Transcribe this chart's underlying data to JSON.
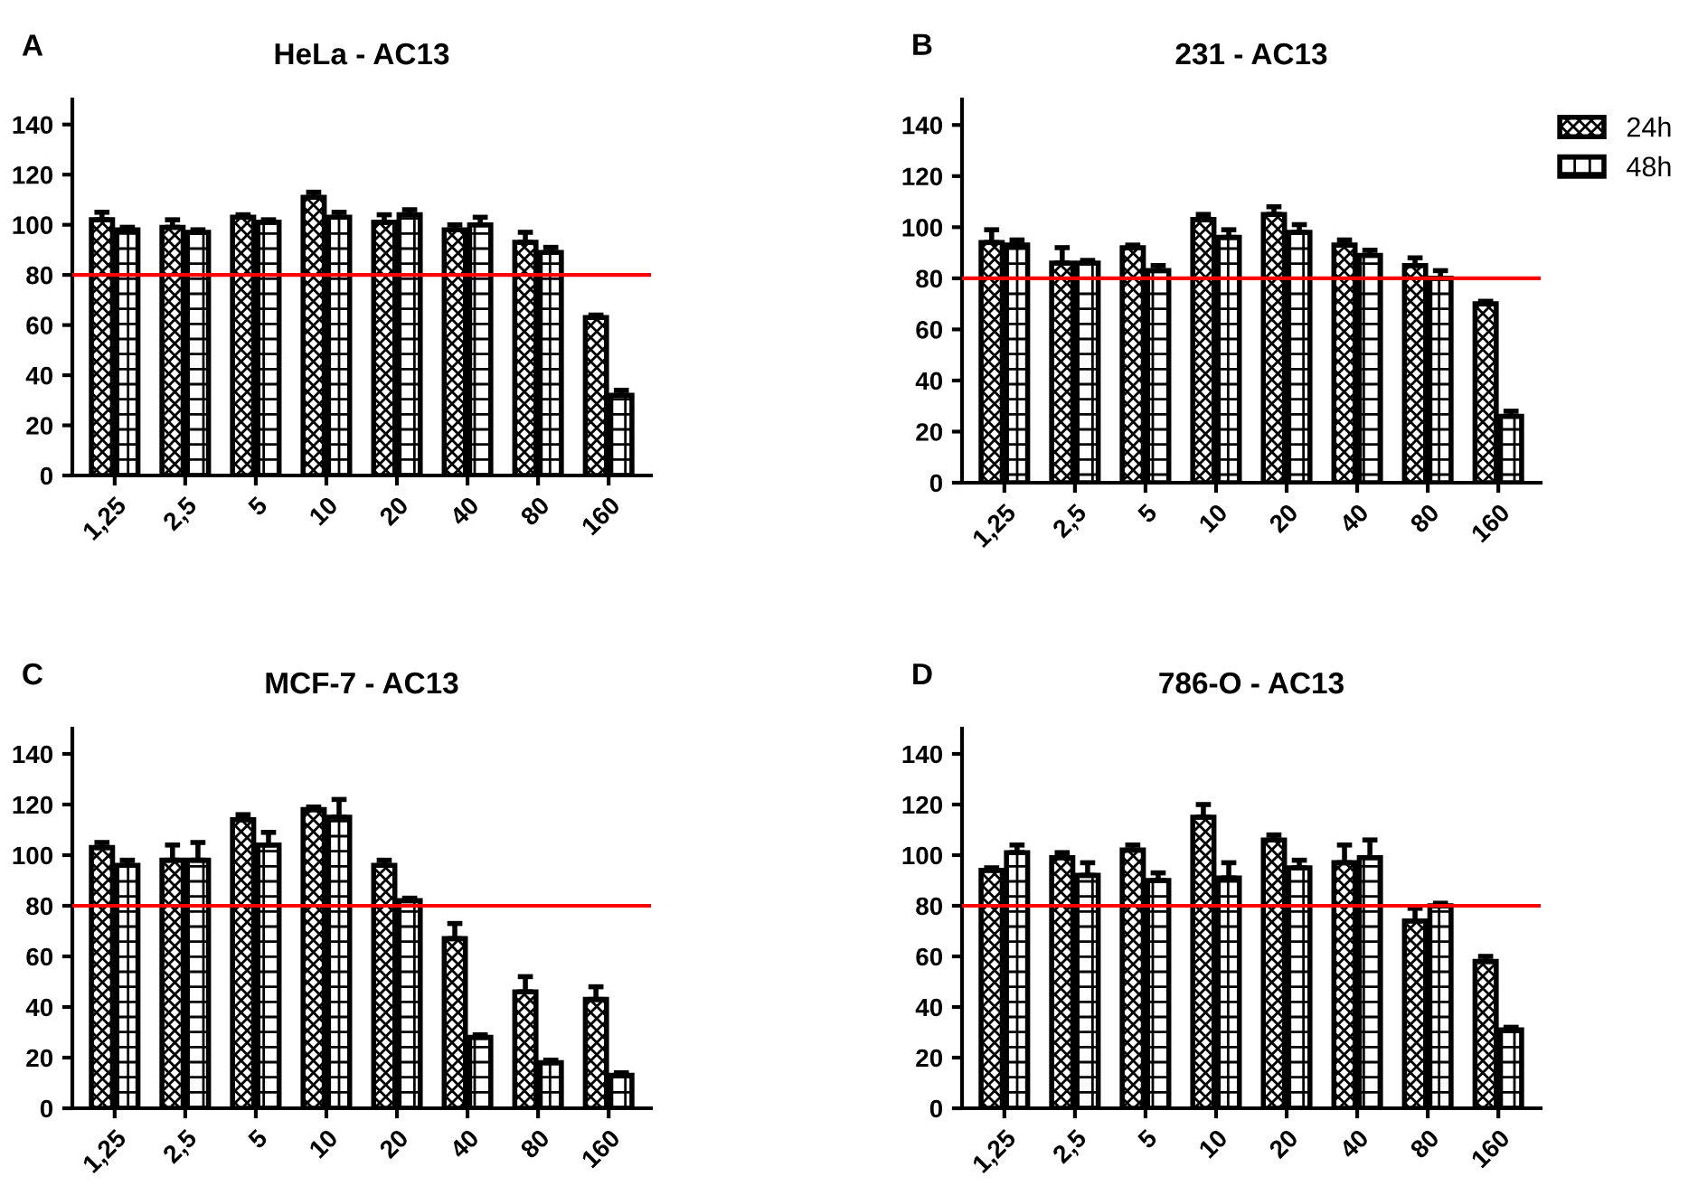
{
  "chart_data": [
    {
      "type": "bar",
      "title": "HeLa - AC13",
      "annotations": [
        "A"
      ],
      "categories": [
        "1,25",
        "2,5",
        "5",
        "10",
        "20",
        "40",
        "80",
        "160"
      ],
      "ylim": [
        0,
        150
      ],
      "yticks": [
        0,
        20,
        40,
        60,
        80,
        100,
        120,
        140
      ],
      "grid": false,
      "legend": false,
      "series": [
        {
          "color": "#000000",
          "values": [
            102,
            99,
            103,
            111,
            101,
            98,
            93,
            63
          ],
          "errors": [
            3,
            3,
            1,
            2,
            3,
            2,
            4,
            1
          ]
        },
        {
          "color": "#000000",
          "values": [
            98,
            97,
            101,
            103,
            104,
            100,
            89,
            32
          ],
          "errors": [
            1,
            1,
            1,
            2,
            2,
            3,
            2,
            2
          ]
        }
      ],
      "ref_lines": [
        {
          "axis": "y",
          "value": 80,
          "color": "#ff0000"
        }
      ]
    },
    {
      "type": "bar",
      "title": "231 - AC13",
      "annotations": [
        "B"
      ],
      "categories": [
        "1,25",
        "2,5",
        "5",
        "10",
        "20",
        "40",
        "80",
        "160"
      ],
      "ylim": [
        0,
        150
      ],
      "yticks": [
        0,
        20,
        40,
        60,
        80,
        100,
        120,
        140
      ],
      "grid": false,
      "legend": "top right",
      "series": [
        {
          "name": "24h",
          "color": "#000000",
          "values": [
            94,
            86,
            92,
            103,
            105,
            93,
            85,
            70
          ],
          "errors": [
            5,
            6,
            1,
            2,
            3,
            2,
            3,
            1
          ]
        },
        {
          "name": "48h",
          "color": "#000000",
          "values": [
            93,
            86,
            83,
            96,
            98,
            89,
            80,
            26
          ],
          "errors": [
            2,
            1,
            2,
            3,
            3,
            2,
            3,
            2
          ]
        }
      ],
      "ref_lines": [
        {
          "axis": "y",
          "value": 80,
          "color": "#ff0000"
        }
      ]
    },
    {
      "type": "bar",
      "title": "MCF-7 - AC13",
      "annotations": [
        "C"
      ],
      "categories": [
        "1,25",
        "2,5",
        "5",
        "10",
        "20",
        "40",
        "80",
        "160"
      ],
      "ylim": [
        0,
        150
      ],
      "yticks": [
        0,
        20,
        40,
        60,
        80,
        100,
        120,
        140
      ],
      "grid": false,
      "legend": false,
      "series": [
        {
          "color": "#000000",
          "values": [
            103,
            98,
            114,
            118,
            96,
            67,
            46,
            43
          ],
          "errors": [
            2,
            6,
            2,
            1,
            2,
            6,
            6,
            5
          ]
        },
        {
          "color": "#000000",
          "values": [
            96,
            98,
            104,
            115,
            82,
            28,
            18,
            13
          ],
          "errors": [
            2,
            7,
            5,
            7,
            1,
            1,
            1,
            1
          ]
        }
      ],
      "ref_lines": [
        {
          "axis": "y",
          "value": 80,
          "color": "#ff0000"
        }
      ]
    },
    {
      "type": "bar",
      "title": "786-O - AC13",
      "annotations": [
        "D"
      ],
      "categories": [
        "1,25",
        "2,5",
        "5",
        "10",
        "20",
        "40",
        "80",
        "160"
      ],
      "ylim": [
        0,
        150
      ],
      "yticks": [
        0,
        20,
        40,
        60,
        80,
        100,
        120,
        140
      ],
      "grid": false,
      "legend": false,
      "series": [
        {
          "color": "#000000",
          "values": [
            94,
            99,
            102,
            115,
            106,
            97,
            74,
            58
          ],
          "errors": [
            1,
            2,
            2,
            5,
            2,
            7,
            5,
            2
          ]
        },
        {
          "color": "#000000",
          "values": [
            101,
            92,
            90,
            91,
            95,
            99,
            80,
            31
          ],
          "errors": [
            3,
            5,
            3,
            6,
            3,
            7,
            1,
            1
          ]
        }
      ],
      "ref_lines": [
        {
          "axis": "y",
          "value": 80,
          "color": "#ff0000"
        }
      ]
    }
  ]
}
